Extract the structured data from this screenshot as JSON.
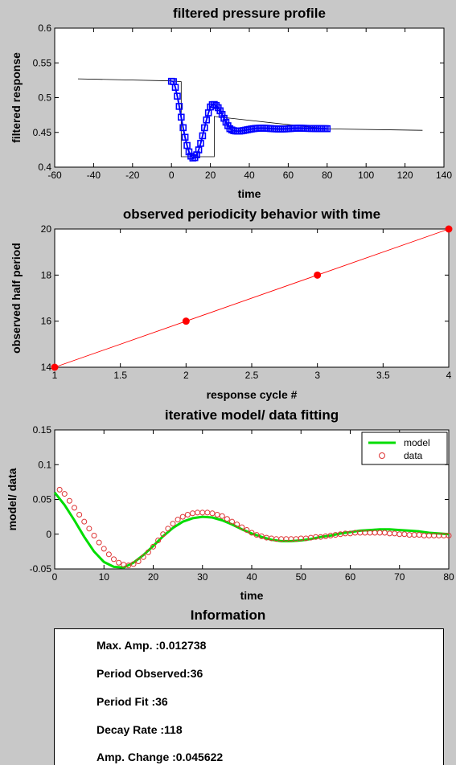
{
  "chart_data": [
    {
      "type": "line",
      "title": "filtered pressure profile",
      "xlabel": "time",
      "ylabel": "filtered response",
      "xlim": [
        -60,
        140
      ],
      "ylim": [
        0.4,
        0.6
      ],
      "xticks": [
        -60,
        -40,
        -20,
        0,
        20,
        40,
        60,
        80,
        100,
        120,
        140
      ],
      "yticks": [
        0.4,
        0.45,
        0.5,
        0.55,
        0.6
      ],
      "grid": false,
      "series": [
        {
          "style": "thin-line",
          "color": "#000000",
          "x": [
            -48,
            0,
            5,
            5,
            22,
            22,
            80,
            129
          ],
          "y": [
            0.527,
            0.524,
            0.523,
            0.415,
            0.415,
            0.473,
            0.455,
            0.453
          ]
        },
        {
          "style": "markers-line",
          "color": "#0000ff",
          "marker": "square",
          "x": [
            0,
            1,
            2,
            3,
            4,
            5,
            6,
            7,
            8,
            9,
            10,
            11,
            12,
            13,
            14,
            15,
            16,
            17,
            18,
            19,
            20,
            21,
            22,
            23,
            24,
            25,
            26,
            27,
            28,
            29,
            30,
            31,
            32,
            33,
            34,
            35,
            36,
            37,
            38,
            39,
            40,
            41,
            42,
            43,
            44,
            45,
            46,
            47,
            48,
            49,
            50,
            51,
            52,
            53,
            54,
            55,
            56,
            57,
            58,
            59,
            60,
            61,
            62,
            63,
            64,
            65,
            66,
            67,
            68,
            69,
            70,
            71,
            72,
            73,
            74,
            75,
            76,
            77,
            78,
            79,
            80
          ],
          "y": [
            0.5235,
            0.5231,
            0.5148,
            0.5021,
            0.4874,
            0.4719,
            0.4568,
            0.443,
            0.4312,
            0.422,
            0.4159,
            0.4131,
            0.4137,
            0.4178,
            0.4248,
            0.4342,
            0.4451,
            0.4567,
            0.4679,
            0.4781,
            0.4866,
            0.4898,
            0.4901,
            0.4886,
            0.4855,
            0.4811,
            0.4759,
            0.4703,
            0.4647,
            0.4596,
            0.4553,
            0.4535,
            0.4525,
            0.452,
            0.4518,
            0.4519,
            0.4522,
            0.4527,
            0.4532,
            0.4538,
            0.4543,
            0.4548,
            0.4553,
            0.4556,
            0.4559,
            0.456,
            0.4561,
            0.4561,
            0.456,
            0.4559,
            0.4557,
            0.4555,
            0.4553,
            0.4551,
            0.455,
            0.4549,
            0.4549,
            0.4549,
            0.455,
            0.4551,
            0.4553,
            0.4555,
            0.4557,
            0.4559,
            0.456,
            0.4561,
            0.4561,
            0.456,
            0.4559,
            0.4558,
            0.4557,
            0.4557,
            0.4556,
            0.4556,
            0.4555,
            0.4555,
            0.4555,
            0.4554,
            0.4554,
            0.4554,
            0.4553
          ]
        }
      ]
    },
    {
      "type": "line",
      "title": "observed periodicity behavior with time",
      "xlabel": "response cycle #",
      "ylabel": "observed half period",
      "xlim": [
        1,
        4
      ],
      "ylim": [
        14,
        20
      ],
      "xticks": [
        1,
        1.5,
        2,
        2.5,
        3,
        3.5,
        4
      ],
      "yticks": [
        14,
        16,
        18,
        20
      ],
      "grid": false,
      "series": [
        {
          "style": "line-markers",
          "color": "#ff0000",
          "marker": "dot",
          "x": [
            1,
            2,
            3,
            4
          ],
          "y": [
            14,
            16,
            18,
            20
          ]
        }
      ]
    },
    {
      "type": "line",
      "title": "iterative model/ data fitting",
      "xlabel": "time",
      "ylabel": "model/ data",
      "xlim": [
        0,
        80
      ],
      "ylim": [
        -0.05,
        0.15
      ],
      "xticks": [
        0,
        10,
        20,
        30,
        40,
        50,
        60,
        70,
        80
      ],
      "yticks": [
        -0.05,
        0,
        0.05,
        0.1,
        0.15
      ],
      "grid": false,
      "legend": "top-right",
      "series": [
        {
          "name": "model",
          "style": "thick-line",
          "color": "#00dd00",
          "x": [
            0,
            2,
            4,
            6,
            8,
            10,
            12,
            14,
            16,
            18,
            20,
            22,
            24,
            26,
            28,
            30,
            32,
            34,
            36,
            38,
            40,
            42,
            44,
            46,
            48,
            50,
            52,
            54,
            56,
            58,
            60,
            62,
            64,
            66,
            68,
            70,
            72,
            74,
            76,
            78,
            80
          ],
          "y": [
            0.06,
            0.042,
            0.02,
            -0.004,
            -0.025,
            -0.04,
            -0.047,
            -0.048,
            -0.041,
            -0.03,
            -0.017,
            -0.003,
            0.009,
            0.018,
            0.023,
            0.025,
            0.024,
            0.02,
            0.014,
            0.007,
            0.001,
            -0.004,
            -0.008,
            -0.01,
            -0.01,
            -0.009,
            -0.007,
            -0.004,
            -0.002,
            0.001,
            0.003,
            0.005,
            0.006,
            0.007,
            0.007,
            0.006,
            0.005,
            0.004,
            0.002,
            0.001,
            0
          ]
        },
        {
          "name": "data",
          "style": "circles",
          "color": "#dd3333",
          "x": [
            1,
            2,
            3,
            4,
            5,
            6,
            7,
            8,
            9,
            10,
            11,
            12,
            13,
            14,
            15,
            16,
            17,
            18,
            19,
            20,
            21,
            22,
            23,
            24,
            25,
            26,
            27,
            28,
            29,
            30,
            31,
            32,
            33,
            34,
            35,
            36,
            37,
            38,
            39,
            40,
            41,
            42,
            43,
            44,
            45,
            46,
            47,
            48,
            49,
            50,
            51,
            52,
            53,
            54,
            55,
            56,
            57,
            58,
            59,
            60,
            61,
            62,
            63,
            64,
            65,
            66,
            67,
            68,
            69,
            70,
            71,
            72,
            73,
            74,
            75,
            76,
            77,
            78,
            79,
            80
          ],
          "y": [
            0.064,
            0.058,
            0.048,
            0.038,
            0.028,
            0.018,
            0.008,
            -0.002,
            -0.012,
            -0.021,
            -0.029,
            -0.036,
            -0.041,
            -0.044,
            -0.045,
            -0.043,
            -0.039,
            -0.033,
            -0.026,
            -0.018,
            -0.009,
            0.0,
            0.008,
            0.015,
            0.021,
            0.025,
            0.028,
            0.03,
            0.031,
            0.031,
            0.031,
            0.03,
            0.028,
            0.026,
            0.022,
            0.018,
            0.014,
            0.01,
            0.006,
            0.002,
            -0.001,
            -0.003,
            -0.005,
            -0.006,
            -0.007,
            -0.007,
            -0.007,
            -0.007,
            -0.007,
            -0.006,
            -0.006,
            -0.005,
            -0.004,
            -0.004,
            -0.003,
            -0.002,
            -0.001,
            0.0,
            0.001,
            0.001,
            0.002,
            0.002,
            0.002,
            0.002,
            0.002,
            0.002,
            0.002,
            0.001,
            0.001,
            0.0,
            0.0,
            -0.001,
            -0.001,
            -0.001,
            -0.002,
            -0.002,
            -0.002,
            -0.002,
            -0.002,
            -0.002
          ]
        }
      ]
    }
  ],
  "info": {
    "title": "Information",
    "lines": [
      "Max. Amp. :0.012738",
      "Period Observed:36",
      "Period Fit :36",
      "Decay Rate :118",
      "Amp. Change :0.045622"
    ]
  }
}
